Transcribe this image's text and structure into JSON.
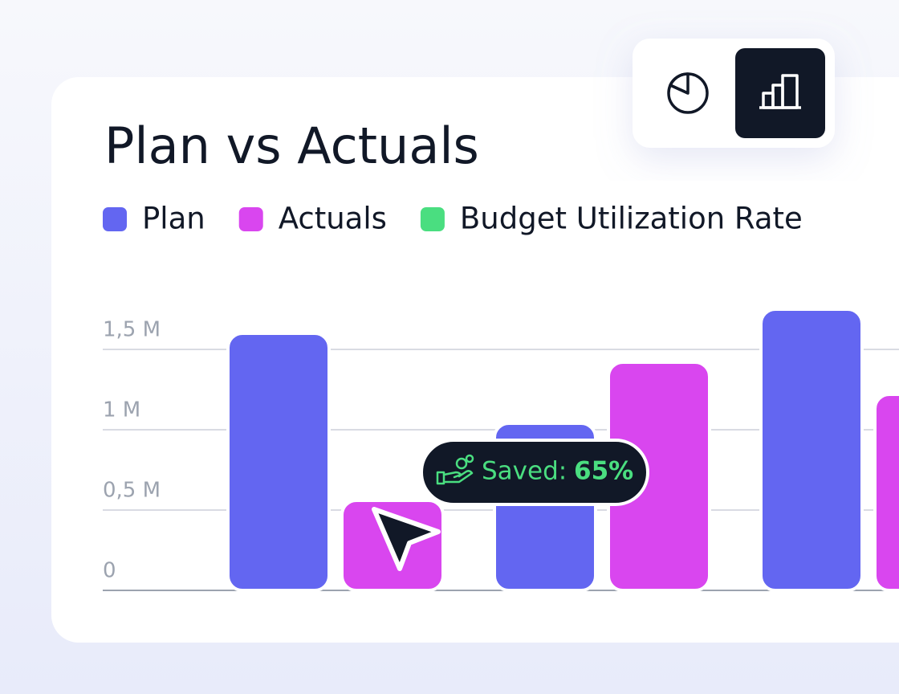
{
  "chart_data": {
    "type": "bar",
    "title": "Plan vs Actuals",
    "categories": [
      null,
      null,
      null
    ],
    "series": [
      {
        "name": "Plan",
        "color": "#6366f1",
        "values": [
          1600000,
          1040000,
          1750000
        ]
      },
      {
        "name": "Actuals",
        "color": "#d946ef",
        "values": [
          560000,
          1420000,
          1220000
        ]
      },
      {
        "name": "Budget Utilization Rate",
        "color": "#4ade80",
        "values": [
          null,
          null,
          null
        ]
      }
    ],
    "ylim": [
      0,
      1800000
    ],
    "yticks": [
      0,
      {
        "value": 500000,
        "label": "0,5 M"
      },
      {
        "value": 1000000,
        "label": "1 M"
      },
      {
        "value": 1500000,
        "label": "1,5 M"
      }
    ],
    "grid": true,
    "annotation": {
      "label": "Saved:",
      "value": "65%"
    }
  }
}
